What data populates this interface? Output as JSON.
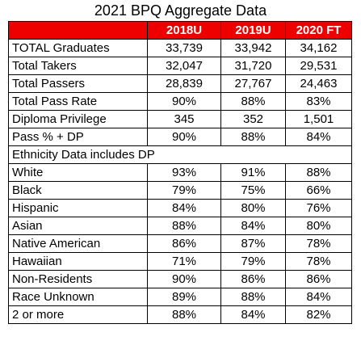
{
  "title": "2021 BPQ Aggregate Data",
  "columns": [
    "2018U",
    "2019U",
    "2020 FT"
  ],
  "rows_top": [
    {
      "label": "TOTAL Graduates",
      "values": [
        "33,739",
        "33,942",
        "34,162"
      ]
    },
    {
      "label": "Total Takers",
      "values": [
        "32,047",
        "31,720",
        "29,531"
      ]
    },
    {
      "label": "Total Passers",
      "values": [
        "28,839",
        "27,767",
        "24,463"
      ]
    },
    {
      "label": "Total Pass Rate",
      "values": [
        "90%",
        "88%",
        "83%"
      ]
    },
    {
      "label": "Diploma Privilege",
      "values": [
        "345",
        "352",
        "1,501"
      ]
    },
    {
      "label": "Pass % + DP",
      "values": [
        "90%",
        "88%",
        "84%"
      ]
    }
  ],
  "section_label": "Ethnicity Data includes DP",
  "rows_ethnicity": [
    {
      "label": "White",
      "values": [
        "93%",
        "91%",
        "88%"
      ]
    },
    {
      "label": "Black",
      "values": [
        "79%",
        "75%",
        "66%"
      ]
    },
    {
      "label": "Hispanic",
      "values": [
        "84%",
        "80%",
        "76%"
      ]
    },
    {
      "label": "Asian",
      "values": [
        "88%",
        "84%",
        "80%"
      ]
    },
    {
      "label": "Native American",
      "values": [
        "86%",
        "87%",
        "78%"
      ]
    },
    {
      "label": "Hawaiian",
      "values": [
        "71%",
        "79%",
        "78%"
      ]
    },
    {
      "label": "Non-Residents",
      "values": [
        "90%",
        "86%",
        "86%"
      ]
    },
    {
      "label": "Race Unknown",
      "values": [
        "89%",
        "88%",
        "84%"
      ]
    },
    {
      "label": "2 or more",
      "values": [
        "88%",
        "84%",
        "82%"
      ]
    }
  ],
  "colors": {
    "header_bg": "#ef0000",
    "header_text": "#ffffff",
    "border": "#000000"
  }
}
